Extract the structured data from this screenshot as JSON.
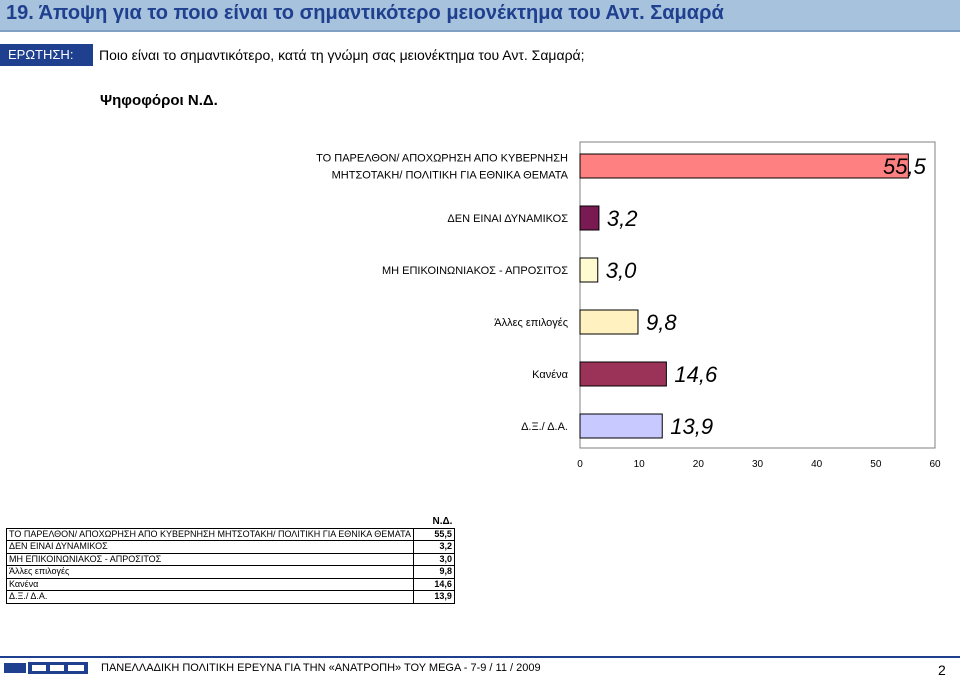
{
  "header": {
    "title": "19.  Άποψη για το ποιο είναι το σημαντικότερο μειονέκτημα του Αντ. Σαμαρά",
    "question_label": "ΕΡΩΤΗΣΗ:",
    "question_text": "Ποιο είναι το σημαντικότερο, κατά τη γνώμη σας μειονέκτημα του Αντ. Σαμαρά;",
    "voters": "Ψηφοφόροι Ν.Δ."
  },
  "chart_data": {
    "type": "bar",
    "orientation": "horizontal",
    "categories": [
      "ΤΟ ΠΑΡΕΛΘΟΝ/ ΑΠΟΧΩΡΗΣΗ ΑΠΟ ΚΥΒΕΡΝΗΣΗ ΜΗΤΣΟΤΑΚΗ/ ΠΟΛΙΤΙΚΗ ΓΙΑ ΕΘΝΙΚΑ ΘΕΜΑΤΑ",
      "ΔΕΝ ΕΙΝΑΙ ΔΥΝΑΜΙΚΟΣ",
      "ΜΗ ΕΠΙΚΟΙΝΩΝΙΑΚΟΣ - ΑΠΡΟΣΙΤΟΣ",
      "Άλλες επιλογές",
      "Κανένα",
      "Δ.Ξ./ Δ.Α."
    ],
    "category_lines": [
      [
        "ΤΟ ΠΑΡΕΛΘΟΝ/ ΑΠΟΧΩΡΗΣΗ ΑΠΟ ΚΥΒΕΡΝΗΣΗ",
        "ΜΗΤΣΟΤΑΚΗ/ ΠΟΛΙΤΙΚΗ ΓΙΑ ΕΘΝΙΚΑ ΘΕΜΑΤΑ"
      ],
      [
        "ΔΕΝ ΕΙΝΑΙ ΔΥΝΑΜΙΚΟΣ"
      ],
      [
        "ΜΗ ΕΠΙΚΟΙΝΩΝΙΑΚΟΣ - ΑΠΡΟΣΙΤΟΣ"
      ],
      [
        "Άλλες επιλογές"
      ],
      [
        "Κανένα"
      ],
      [
        "Δ.Ξ./ Δ.Α."
      ]
    ],
    "values": [
      55.5,
      3.2,
      3.0,
      9.8,
      14.6,
      13.9
    ],
    "value_labels": [
      "55,5",
      "3,2",
      "3,0",
      "9,8",
      "14,6",
      "13,9"
    ],
    "colors": [
      "#ff8080",
      "#7a1a52",
      "#fffbd0",
      "#fff2c0",
      "#9b3358",
      "#c8c9ff"
    ],
    "xlim": [
      0,
      60
    ],
    "xticks": [
      0,
      10,
      20,
      30,
      40,
      50,
      60
    ],
    "grid": false
  },
  "table": {
    "header": "Ν.Δ.",
    "rows": [
      {
        "label": "ΤΟ ΠΑΡΕΛΘΟΝ/ ΑΠΟΧΩΡΗΣΗ ΑΠΟ ΚΥΒΕΡΝΗΣΗ ΜΗΤΣΟΤΑΚΗ/ ΠΟΛΙΤΙΚΗ ΓΙΑ ΕΘΝΙΚΑ ΘΕΜΑΤΑ",
        "value": "55,5"
      },
      {
        "label": "ΔΕΝ ΕΙΝΑΙ ΔΥΝΑΜΙΚΟΣ",
        "value": "3,2"
      },
      {
        "label": "ΜΗ ΕΠΙΚΟΙΝΩΝΙΑΚΟΣ - ΑΠΡΟΣΙΤΟΣ",
        "value": "3,0"
      },
      {
        "label": "Άλλες επιλογές",
        "value": "9,8"
      },
      {
        "label": "Κανένα",
        "value": "14,6"
      },
      {
        "label": "Δ.Ξ./ Δ.Α.",
        "value": "13,9"
      }
    ]
  },
  "footer": {
    "logo": "GPO",
    "text": "ΠΑΝΕΛΛΑΔΙΚΗ ΠΟΛΙΤΙΚΗ ΕΡΕΥΝΑ ΓΙΑ ΤΗΝ «ΑΝΑΤΡΟΠΗ» ΤΟΥ MEGA  -  7-9  / 11 / 2009",
    "page": "2"
  },
  "colors": {
    "title_blue": "#1f3f8f",
    "header_band": "#a7c2dc"
  }
}
